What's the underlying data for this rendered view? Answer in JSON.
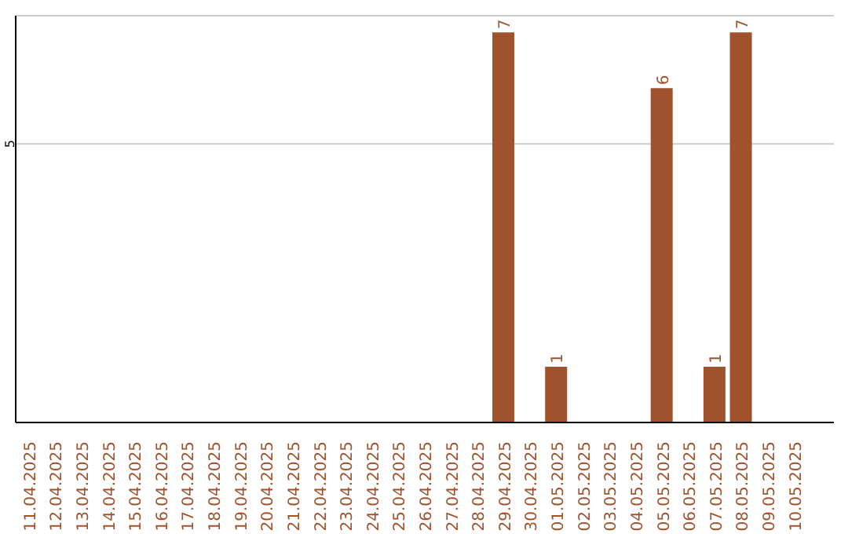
{
  "chart_data": {
    "type": "bar",
    "categories": [
      "11.04.2025",
      "12.04.2025",
      "13.04.2025",
      "14.04.2025",
      "15.04.2025",
      "16.04.2025",
      "17.04.2025",
      "18.04.2025",
      "19.04.2025",
      "20.04.2025",
      "21.04.2025",
      "22.04.2025",
      "23.04.2025",
      "24.04.2025",
      "25.04.2025",
      "26.04.2025",
      "27.04.2025",
      "28.04.2025",
      "29.04.2025",
      "30.04.2025",
      "01.05.2025",
      "02.05.2025",
      "03.05.2025",
      "04.05.2025",
      "05.05.2025",
      "06.05.2025",
      "07.05.2025",
      "08.05.2025",
      "09.05.2025",
      "10.05.2025",
      null
    ],
    "values": [
      null,
      null,
      null,
      null,
      null,
      null,
      null,
      null,
      null,
      null,
      null,
      null,
      null,
      null,
      null,
      null,
      null,
      null,
      7,
      null,
      1,
      null,
      null,
      null,
      6,
      null,
      1,
      7,
      null,
      null,
      null
    ],
    "value_labels": [
      null,
      null,
      null,
      null,
      null,
      null,
      null,
      null,
      null,
      null,
      null,
      null,
      null,
      null,
      null,
      null,
      null,
      null,
      "7",
      null,
      "1",
      null,
      null,
      null,
      "6",
      null,
      "1",
      "7",
      null,
      null,
      null
    ],
    "color": "#a0522d",
    "ylim": [
      0,
      7.3
    ],
    "yticks": [
      5
    ],
    "grid": "y"
  }
}
